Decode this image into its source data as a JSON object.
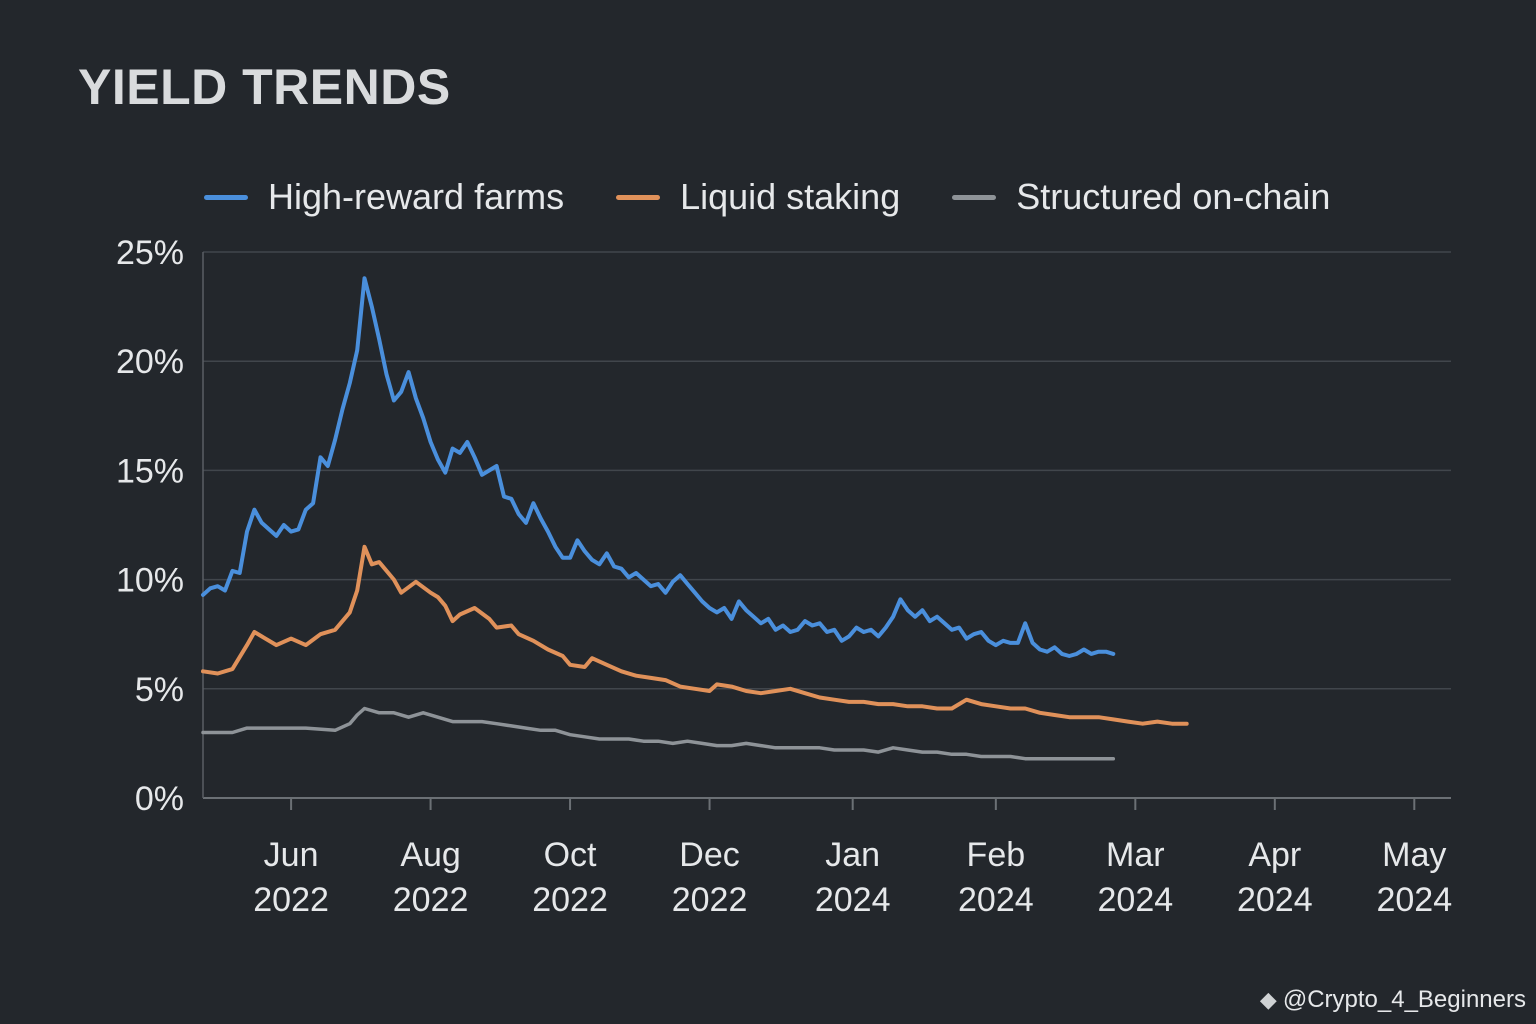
{
  "chart_data": {
    "type": "line",
    "title": "YIELD TRENDS",
    "xlabel": "",
    "ylabel": "",
    "ylim": [
      0,
      25
    ],
    "yticks": [
      "0%",
      "5%",
      "10%",
      "15%",
      "20%",
      "25%"
    ],
    "ytick_values": [
      0,
      5,
      10,
      15,
      20,
      25
    ],
    "xlim": [
      0,
      170
    ],
    "xticks": [
      {
        "month": "Jun",
        "year": "2022",
        "x": 12
      },
      {
        "month": "Aug",
        "year": "2022",
        "x": 31
      },
      {
        "month": "Oct",
        "year": "2022",
        "x": 50
      },
      {
        "month": "Dec",
        "year": "2022",
        "x": 69
      },
      {
        "month": "Jan",
        "year": "2024",
        "x": 88.5
      },
      {
        "month": "Feb",
        "year": "2024",
        "x": 108
      },
      {
        "month": "Mar",
        "year": "2024",
        "x": 127
      },
      {
        "month": "Apr",
        "year": "2024",
        "x": 146
      },
      {
        "month": "May",
        "year": "2024",
        "x": 165
      }
    ],
    "legend_position": "top",
    "grid": true,
    "series": [
      {
        "name": "High-reward farms",
        "color": "#4a8fdc",
        "points": [
          [
            0,
            9.3
          ],
          [
            1,
            9.6
          ],
          [
            2,
            9.7
          ],
          [
            3,
            9.5
          ],
          [
            4,
            10.4
          ],
          [
            5,
            10.3
          ],
          [
            6,
            12.2
          ],
          [
            7,
            13.2
          ],
          [
            8,
            12.6
          ],
          [
            9,
            12.3
          ],
          [
            10,
            12
          ],
          [
            11,
            12.5
          ],
          [
            12,
            12.2
          ],
          [
            13,
            12.3
          ],
          [
            14,
            13.2
          ],
          [
            15,
            13.5
          ],
          [
            16,
            15.6
          ],
          [
            17,
            15.2
          ],
          [
            18,
            16.4
          ],
          [
            19,
            17.8
          ],
          [
            20,
            19
          ],
          [
            21,
            20.5
          ],
          [
            22,
            23.8
          ],
          [
            23,
            22.5
          ],
          [
            24,
            21
          ],
          [
            25,
            19.4
          ],
          [
            26,
            18.2
          ],
          [
            27,
            18.6
          ],
          [
            28,
            19.5
          ],
          [
            29,
            18.3
          ],
          [
            30,
            17.4
          ],
          [
            31,
            16.3
          ],
          [
            32,
            15.5
          ],
          [
            33,
            14.9
          ],
          [
            34,
            16
          ],
          [
            35,
            15.8
          ],
          [
            36,
            16.3
          ],
          [
            37,
            15.6
          ],
          [
            38,
            14.8
          ],
          [
            39,
            15
          ],
          [
            40,
            15.2
          ],
          [
            41,
            13.8
          ],
          [
            42,
            13.7
          ],
          [
            43,
            13
          ],
          [
            44,
            12.6
          ],
          [
            45,
            13.5
          ],
          [
            46,
            12.8
          ],
          [
            47,
            12.2
          ],
          [
            48,
            11.5
          ],
          [
            49,
            11
          ],
          [
            50,
            11
          ],
          [
            51,
            11.8
          ],
          [
            52,
            11.3
          ],
          [
            53,
            10.9
          ],
          [
            54,
            10.7
          ],
          [
            55,
            11.2
          ],
          [
            56,
            10.6
          ],
          [
            57,
            10.5
          ],
          [
            58,
            10.1
          ],
          [
            59,
            10.3
          ],
          [
            60,
            10
          ],
          [
            61,
            9.7
          ],
          [
            62,
            9.8
          ],
          [
            63,
            9.4
          ],
          [
            64,
            9.9
          ],
          [
            65,
            10.2
          ],
          [
            66,
            9.8
          ],
          [
            67,
            9.4
          ],
          [
            68,
            9
          ],
          [
            69,
            8.7
          ],
          [
            70,
            8.5
          ],
          [
            71,
            8.7
          ],
          [
            72,
            8.2
          ],
          [
            73,
            9
          ],
          [
            74,
            8.6
          ],
          [
            75,
            8.3
          ],
          [
            76,
            8
          ],
          [
            77,
            8.2
          ],
          [
            78,
            7.7
          ],
          [
            79,
            7.9
          ],
          [
            80,
            7.6
          ],
          [
            81,
            7.7
          ],
          [
            82,
            8.1
          ],
          [
            83,
            7.9
          ],
          [
            84,
            8
          ],
          [
            85,
            7.6
          ],
          [
            86,
            7.7
          ],
          [
            87,
            7.2
          ],
          [
            88,
            7.4
          ],
          [
            89,
            7.8
          ],
          [
            90,
            7.6
          ],
          [
            91,
            7.7
          ],
          [
            92,
            7.4
          ],
          [
            93,
            7.8
          ],
          [
            94,
            8.3
          ],
          [
            95,
            9.1
          ],
          [
            96,
            8.6
          ],
          [
            97,
            8.3
          ],
          [
            98,
            8.6
          ],
          [
            99,
            8.1
          ],
          [
            100,
            8.3
          ],
          [
            101,
            8
          ],
          [
            102,
            7.7
          ],
          [
            103,
            7.8
          ],
          [
            104,
            7.3
          ],
          [
            105,
            7.5
          ],
          [
            106,
            7.6
          ],
          [
            107,
            7.2
          ],
          [
            108,
            7
          ],
          [
            109,
            7.2
          ],
          [
            110,
            7.1
          ],
          [
            111,
            7.1
          ],
          [
            112,
            8
          ],
          [
            113,
            7.1
          ],
          [
            114,
            6.8
          ],
          [
            115,
            6.7
          ],
          [
            116,
            6.9
          ],
          [
            117,
            6.6
          ],
          [
            118,
            6.5
          ],
          [
            119,
            6.6
          ],
          [
            120,
            6.8
          ],
          [
            121,
            6.6
          ],
          [
            122,
            6.7
          ],
          [
            123,
            6.7
          ],
          [
            124,
            6.6
          ]
        ]
      },
      {
        "name": "Liquid staking",
        "color": "#e0915a",
        "points": [
          [
            0,
            5.8
          ],
          [
            2,
            5.7
          ],
          [
            4,
            5.9
          ],
          [
            6,
            7
          ],
          [
            7,
            7.6
          ],
          [
            8,
            7.4
          ],
          [
            10,
            7
          ],
          [
            12,
            7.3
          ],
          [
            14,
            7
          ],
          [
            16,
            7.5
          ],
          [
            18,
            7.7
          ],
          [
            20,
            8.5
          ],
          [
            21,
            9.5
          ],
          [
            22,
            11.5
          ],
          [
            23,
            10.7
          ],
          [
            24,
            10.8
          ],
          [
            26,
            10
          ],
          [
            27,
            9.4
          ],
          [
            29,
            9.9
          ],
          [
            31,
            9.4
          ],
          [
            32,
            9.2
          ],
          [
            33,
            8.8
          ],
          [
            34,
            8.1
          ],
          [
            35,
            8.4
          ],
          [
            37,
            8.7
          ],
          [
            39,
            8.2
          ],
          [
            40,
            7.8
          ],
          [
            42,
            7.9
          ],
          [
            43,
            7.5
          ],
          [
            45,
            7.2
          ],
          [
            47,
            6.8
          ],
          [
            49,
            6.5
          ],
          [
            50,
            6.1
          ],
          [
            52,
            6
          ],
          [
            53,
            6.4
          ],
          [
            55,
            6.1
          ],
          [
            57,
            5.8
          ],
          [
            59,
            5.6
          ],
          [
            61,
            5.5
          ],
          [
            63,
            5.4
          ],
          [
            65,
            5.1
          ],
          [
            67,
            5
          ],
          [
            69,
            4.9
          ],
          [
            70,
            5.2
          ],
          [
            72,
            5.1
          ],
          [
            74,
            4.9
          ],
          [
            76,
            4.8
          ],
          [
            78,
            4.9
          ],
          [
            80,
            5
          ],
          [
            82,
            4.8
          ],
          [
            84,
            4.6
          ],
          [
            86,
            4.5
          ],
          [
            88,
            4.4
          ],
          [
            90,
            4.4
          ],
          [
            92,
            4.3
          ],
          [
            94,
            4.3
          ],
          [
            96,
            4.2
          ],
          [
            98,
            4.2
          ],
          [
            100,
            4.1
          ],
          [
            102,
            4.1
          ],
          [
            104,
            4.5
          ],
          [
            106,
            4.3
          ],
          [
            108,
            4.2
          ],
          [
            110,
            4.1
          ],
          [
            112,
            4.1
          ],
          [
            114,
            3.9
          ],
          [
            116,
            3.8
          ],
          [
            118,
            3.7
          ],
          [
            120,
            3.7
          ],
          [
            122,
            3.7
          ],
          [
            124,
            3.6
          ],
          [
            126,
            3.5
          ],
          [
            128,
            3.4
          ],
          [
            130,
            3.5
          ],
          [
            132,
            3.4
          ],
          [
            134,
            3.4
          ]
        ]
      },
      {
        "name": "Structured on-chain",
        "color": "#8e9398",
        "points": [
          [
            0,
            3
          ],
          [
            4,
            3
          ],
          [
            6,
            3.2
          ],
          [
            10,
            3.2
          ],
          [
            14,
            3.2
          ],
          [
            18,
            3.1
          ],
          [
            20,
            3.4
          ],
          [
            21,
            3.8
          ],
          [
            22,
            4.1
          ],
          [
            24,
            3.9
          ],
          [
            26,
            3.9
          ],
          [
            28,
            3.7
          ],
          [
            30,
            3.9
          ],
          [
            32,
            3.7
          ],
          [
            34,
            3.5
          ],
          [
            36,
            3.5
          ],
          [
            38,
            3.5
          ],
          [
            40,
            3.4
          ],
          [
            42,
            3.3
          ],
          [
            44,
            3.2
          ],
          [
            46,
            3.1
          ],
          [
            48,
            3.1
          ],
          [
            50,
            2.9
          ],
          [
            52,
            2.8
          ],
          [
            54,
            2.7
          ],
          [
            56,
            2.7
          ],
          [
            58,
            2.7
          ],
          [
            60,
            2.6
          ],
          [
            62,
            2.6
          ],
          [
            64,
            2.5
          ],
          [
            66,
            2.6
          ],
          [
            68,
            2.5
          ],
          [
            70,
            2.4
          ],
          [
            72,
            2.4
          ],
          [
            74,
            2.5
          ],
          [
            76,
            2.4
          ],
          [
            78,
            2.3
          ],
          [
            80,
            2.3
          ],
          [
            82,
            2.3
          ],
          [
            84,
            2.3
          ],
          [
            86,
            2.2
          ],
          [
            88,
            2.2
          ],
          [
            90,
            2.2
          ],
          [
            92,
            2.1
          ],
          [
            94,
            2.3
          ],
          [
            96,
            2.2
          ],
          [
            98,
            2.1
          ],
          [
            100,
            2.1
          ],
          [
            102,
            2
          ],
          [
            104,
            2
          ],
          [
            106,
            1.9
          ],
          [
            108,
            1.9
          ],
          [
            110,
            1.9
          ],
          [
            112,
            1.8
          ],
          [
            114,
            1.8
          ],
          [
            116,
            1.8
          ],
          [
            118,
            1.8
          ],
          [
            120,
            1.8
          ],
          [
            122,
            1.8
          ],
          [
            124,
            1.8
          ]
        ]
      }
    ]
  },
  "watermark": {
    "logo": "◆",
    "text": "@Crypto_4_Beginners"
  }
}
